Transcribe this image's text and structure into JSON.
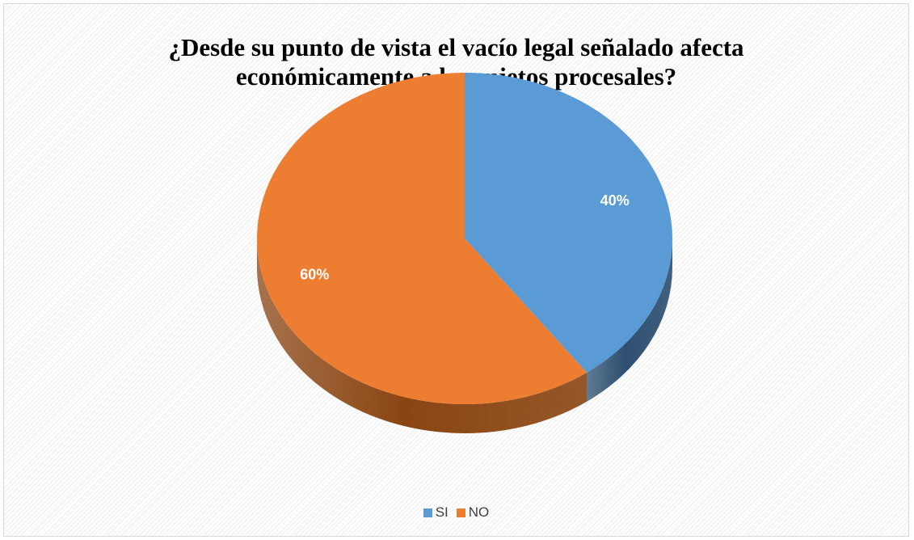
{
  "chart_data": {
    "type": "pie",
    "title_lines": [
      "¿Desde su punto de vista el vacío legal señalado afecta",
      "económicamente a los sujetos procesales?"
    ],
    "categories": [
      "SI",
      "NO"
    ],
    "values": [
      40,
      60
    ],
    "data_labels": [
      "40%",
      "60%"
    ],
    "colors": [
      "#5b9bd5",
      "#ed7d31"
    ],
    "side_colors": [
      "#2d4f70",
      "#8a4512"
    ],
    "legend_position": "bottom",
    "style": "3d-pie"
  }
}
